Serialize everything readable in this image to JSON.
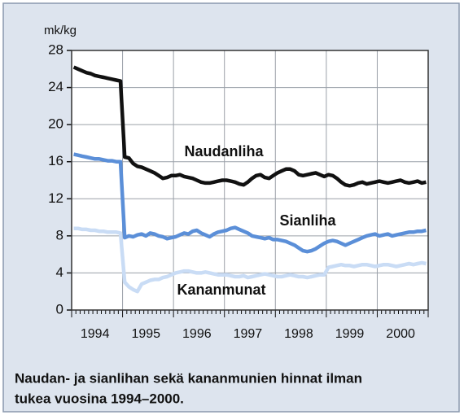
{
  "chart_data": {
    "type": "line",
    "y_unit_label": "mk/kg",
    "caption": [
      "Naudan- ja sianlihan sekä kananmunien hinnat ilman",
      "tukea vuosina 1994–2000."
    ],
    "categories": [
      null,
      null,
      null,
      null,
      null,
      "1994",
      null,
      null,
      null,
      null,
      null,
      null,
      null,
      null,
      null,
      null,
      null,
      "1995",
      null,
      null,
      null,
      null,
      null,
      null,
      null,
      null,
      null,
      null,
      null,
      "1996",
      null,
      null,
      null,
      null,
      null,
      null,
      null,
      null,
      null,
      null,
      null,
      "1997",
      null,
      null,
      null,
      null,
      null,
      null,
      null,
      null,
      null,
      null,
      null,
      "1998",
      null,
      null,
      null,
      null,
      null,
      null,
      null,
      null,
      null,
      null,
      null,
      "1999",
      null,
      null,
      null,
      null,
      null,
      null,
      null,
      null,
      null,
      null,
      null,
      "2000",
      null,
      null,
      null,
      null,
      null,
      null
    ],
    "ylim": [
      0,
      28
    ],
    "yticks": [
      0,
      4,
      8,
      12,
      16,
      20,
      24,
      28
    ],
    "grid": true,
    "series": [
      {
        "name": "Naudanliha",
        "color": "#111111",
        "values": [
          26.2,
          26.0,
          25.8,
          25.6,
          25.5,
          25.3,
          25.2,
          25.1,
          25.0,
          24.9,
          24.8,
          24.7,
          16.5,
          16.4,
          15.8,
          15.5,
          15.4,
          15.2,
          15.0,
          14.8,
          14.5,
          14.2,
          14.3,
          14.5,
          14.5,
          14.6,
          14.4,
          14.3,
          14.2,
          14.0,
          13.8,
          13.7,
          13.7,
          13.8,
          13.9,
          14.0,
          14.0,
          13.9,
          13.8,
          13.6,
          13.5,
          13.8,
          14.2,
          14.5,
          14.6,
          14.3,
          14.2,
          14.5,
          14.8,
          15.0,
          15.2,
          15.2,
          15.0,
          14.6,
          14.5,
          14.6,
          14.7,
          14.8,
          14.6,
          14.4,
          14.6,
          14.5,
          14.2,
          13.8,
          13.5,
          13.4,
          13.5,
          13.7,
          13.8,
          13.6,
          13.7,
          13.8,
          13.9,
          13.8,
          13.7,
          13.8,
          13.9,
          14.0,
          13.8,
          13.7,
          13.8,
          13.9,
          13.7,
          13.8
        ]
      },
      {
        "name": "Sianliha",
        "color": "#5b8fd8",
        "values": [
          16.8,
          16.7,
          16.6,
          16.5,
          16.4,
          16.3,
          16.3,
          16.2,
          16.1,
          16.1,
          16.0,
          16.0,
          7.8,
          8.0,
          7.9,
          8.1,
          8.2,
          8.0,
          8.3,
          8.2,
          8.0,
          7.9,
          7.7,
          7.8,
          7.9,
          8.1,
          8.3,
          8.2,
          8.5,
          8.6,
          8.3,
          8.1,
          7.9,
          8.2,
          8.4,
          8.5,
          8.6,
          8.8,
          8.9,
          8.7,
          8.5,
          8.3,
          8.0,
          7.9,
          7.8,
          7.7,
          7.8,
          7.6,
          7.6,
          7.5,
          7.4,
          7.2,
          7.0,
          6.7,
          6.4,
          6.3,
          6.4,
          6.6,
          6.9,
          7.2,
          7.4,
          7.5,
          7.4,
          7.2,
          7.0,
          7.2,
          7.4,
          7.6,
          7.8,
          8.0,
          8.1,
          8.2,
          8.0,
          8.1,
          8.2,
          8.0,
          8.1,
          8.2,
          8.3,
          8.4,
          8.4,
          8.5,
          8.5,
          8.6
        ]
      },
      {
        "name": "Kananmunat",
        "color": "#c9dcf5",
        "values": [
          8.8,
          8.8,
          8.7,
          8.7,
          8.6,
          8.6,
          8.5,
          8.5,
          8.4,
          8.4,
          8.4,
          8.3,
          3.0,
          2.5,
          2.2,
          2.0,
          2.8,
          3.0,
          3.2,
          3.3,
          3.3,
          3.5,
          3.6,
          3.8,
          4.0,
          4.1,
          4.2,
          4.2,
          4.1,
          4.0,
          4.0,
          4.1,
          4.0,
          3.9,
          3.8,
          3.8,
          3.8,
          3.7,
          3.6,
          3.6,
          3.7,
          3.5,
          3.6,
          3.7,
          3.8,
          3.9,
          3.8,
          3.7,
          3.6,
          3.6,
          3.7,
          3.8,
          3.7,
          3.6,
          3.6,
          3.5,
          3.6,
          3.7,
          3.8,
          3.8,
          4.6,
          4.7,
          4.8,
          4.9,
          4.8,
          4.8,
          4.7,
          4.8,
          4.9,
          4.9,
          4.8,
          4.7,
          4.8,
          4.9,
          4.9,
          4.8,
          4.7,
          4.8,
          4.9,
          5.0,
          4.9,
          5.0,
          5.1,
          5.0
        ]
      }
    ]
  }
}
